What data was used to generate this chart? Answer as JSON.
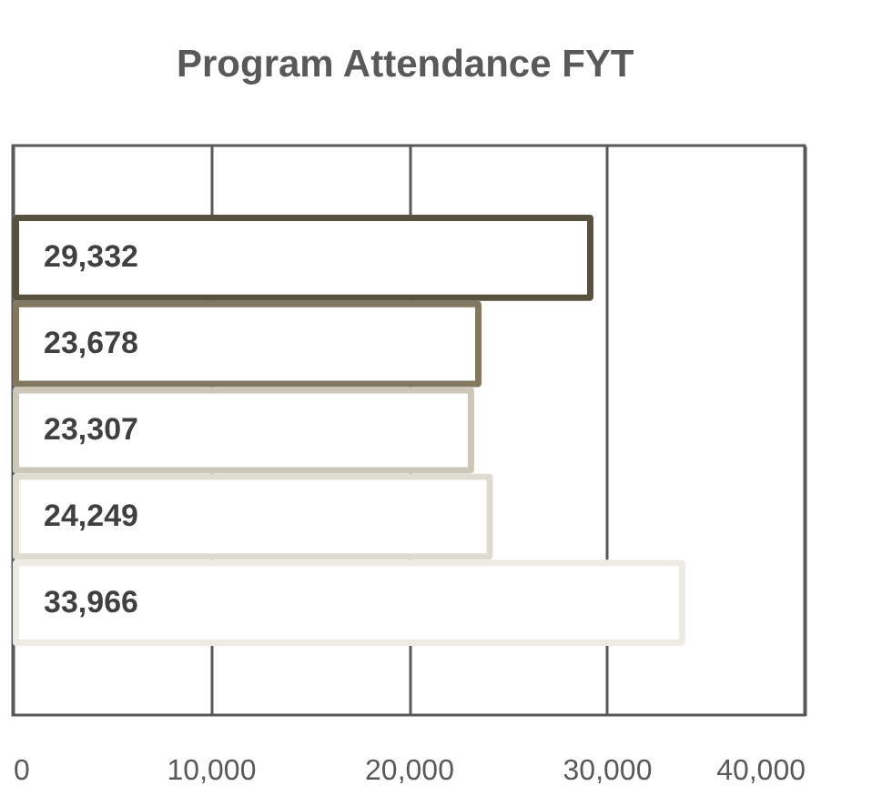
{
  "chart_data": {
    "type": "bar",
    "orientation": "horizontal",
    "title": "Program Attendance FYT",
    "categories": [
      null,
      null,
      null,
      null,
      null
    ],
    "values": [
      29332,
      23678,
      23307,
      24249,
      33966
    ],
    "colors": [
      "#59513f",
      "#827860",
      "#cdc7b9",
      "#dedbd0",
      "#ecebe4"
    ],
    "xlim": [
      0,
      40000
    ],
    "xticks": [
      0,
      {
        "value": 10000,
        "label": "10,000"
      },
      {
        "value": 20000,
        "label": "20,000"
      },
      {
        "value": 30000,
        "label": "30,000"
      },
      {
        "value": 40000,
        "label": "40,000"
      }
    ],
    "value_labels": [
      "29,332",
      "23,678",
      "23,307",
      "24,249",
      "33,966"
    ],
    "grid": "x",
    "tick_labels": "x"
  }
}
